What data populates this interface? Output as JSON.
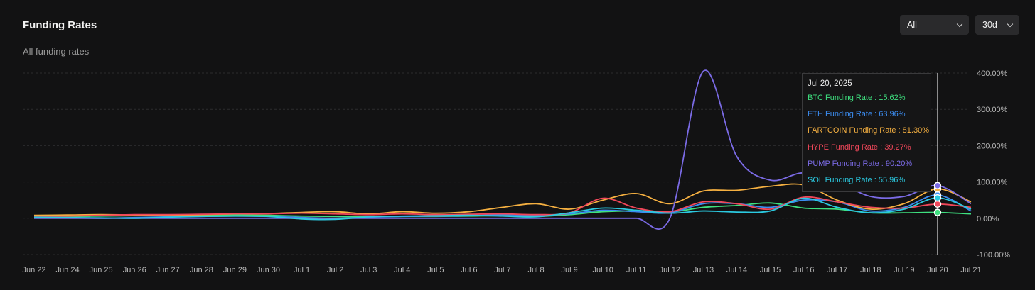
{
  "header": {
    "title": "Funding Rates",
    "subtitle": "All funding rates",
    "asset_select": "All",
    "range_select": "30d"
  },
  "tooltip": {
    "date": "Jul 20, 2025",
    "rows": [
      {
        "label": "BTC Funding Rate : 15.62%",
        "color": "#3ee07f"
      },
      {
        "label": "ETH Funding Rate : 63.96%",
        "color": "#3b8cf0"
      },
      {
        "label": "FARTCOIN Funding Rate : 81.30%",
        "color": "#f5b041"
      },
      {
        "label": "HYPE Funding Rate : 39.27%",
        "color": "#f0475a"
      },
      {
        "label": "PUMP Funding Rate : 90.20%",
        "color": "#7b6be6"
      },
      {
        "label": "SOL Funding Rate : 55.96%",
        "color": "#2bc9e0"
      }
    ]
  },
  "chart_data": {
    "type": "line",
    "ylim": [
      -100,
      400
    ],
    "yticks": [
      "400.00%",
      "300.00%",
      "200.00%",
      "100.00%",
      "0.00%",
      "-100.00%"
    ],
    "ytick_values": [
      400,
      300,
      200,
      100,
      0,
      -100
    ],
    "grid": true,
    "categories": [
      "Jun 22",
      "Jun 24",
      "Jun 25",
      "Jun 26",
      "Jun 27",
      "Jun 28",
      "Jun 29",
      "Jun 30",
      "Jul 1",
      "Jul 2",
      "Jul 3",
      "Jul 4",
      "Jul 5",
      "Jul 6",
      "Jul 7",
      "Jul 8",
      "Jul 9",
      "Jul 10",
      "Jul 11",
      "Jul 12",
      "Jul 13",
      "Jul 14",
      "Jul 15",
      "Jul 16",
      "Jul 17",
      "Jul 18",
      "Jul 19",
      "Jul 20",
      "Jul 21"
    ],
    "highlight": "Jul 20",
    "series": [
      {
        "name": "BTC Funding Rate",
        "color": "#3ee07f",
        "values": [
          5,
          5,
          6,
          7,
          8,
          9,
          9,
          8,
          6,
          5,
          4,
          5,
          5,
          6,
          7,
          5,
          10,
          18,
          20,
          17,
          30,
          35,
          42,
          28,
          25,
          15,
          15,
          16,
          12
        ]
      },
      {
        "name": "ETH Funding Rate",
        "color": "#3b8cf0",
        "values": [
          2,
          1,
          0,
          2,
          4,
          5,
          6,
          5,
          2,
          0,
          3,
          5,
          6,
          7,
          10,
          8,
          12,
          22,
          18,
          15,
          40,
          40,
          30,
          50,
          45,
          20,
          30,
          64,
          20
        ]
      },
      {
        "name": "FARTCOIN Funding Rate",
        "color": "#f5b041",
        "values": [
          8,
          9,
          10,
          9,
          8,
          10,
          12,
          13,
          16,
          18,
          12,
          18,
          14,
          18,
          30,
          40,
          25,
          50,
          68,
          40,
          75,
          77,
          88,
          92,
          50,
          25,
          40,
          81,
          45
        ]
      },
      {
        "name": "HYPE Funding Rate",
        "color": "#f0475a",
        "values": [
          5,
          6,
          8,
          10,
          10,
          11,
          12,
          12,
          14,
          12,
          10,
          12,
          10,
          11,
          12,
          10,
          15,
          55,
          28,
          18,
          45,
          40,
          25,
          58,
          45,
          30,
          28,
          39,
          30
        ]
      },
      {
        "name": "PUMP Funding Rate",
        "color": "#7b6be6",
        "values": [
          0,
          0,
          0,
          0,
          0,
          0,
          0,
          0,
          0,
          0,
          0,
          0,
          0,
          0,
          0,
          0,
          0,
          0,
          0,
          0,
          405,
          170,
          105,
          125,
          100,
          60,
          60,
          90,
          40
        ]
      },
      {
        "name": "SOL Funding Rate",
        "color": "#2bc9e0",
        "values": [
          3,
          2,
          1,
          0,
          3,
          5,
          6,
          5,
          -2,
          -3,
          4,
          6,
          7,
          8,
          6,
          4,
          15,
          28,
          22,
          14,
          20,
          17,
          20,
          55,
          30,
          15,
          25,
          56,
          25
        ]
      }
    ]
  }
}
